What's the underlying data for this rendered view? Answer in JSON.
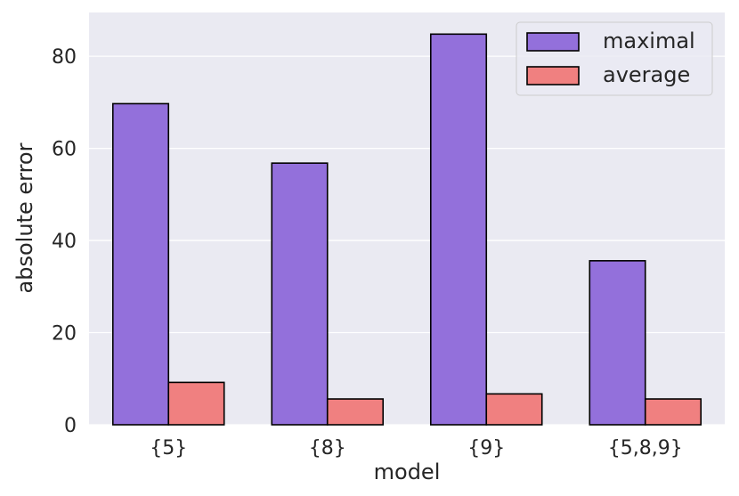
{
  "chart_data": {
    "type": "bar",
    "categories": [
      "{5}",
      "{8}",
      "{9}",
      "{5,8,9}"
    ],
    "series": [
      {
        "name": "maximal",
        "values": [
          69.7,
          56.8,
          84.8,
          35.6
        ],
        "color": "#9370DB"
      },
      {
        "name": "average",
        "values": [
          9.2,
          5.6,
          6.7,
          5.6
        ],
        "color": "#F08080"
      }
    ],
    "xlabel": "model",
    "ylabel": "absolute error",
    "ylim": [
      0,
      89.5
    ],
    "yticks": [
      0,
      20,
      40,
      60,
      80
    ],
    "grid": true,
    "legend_position": "top-right",
    "background_color": "#EAEAF2",
    "edge_color": "#000000"
  }
}
